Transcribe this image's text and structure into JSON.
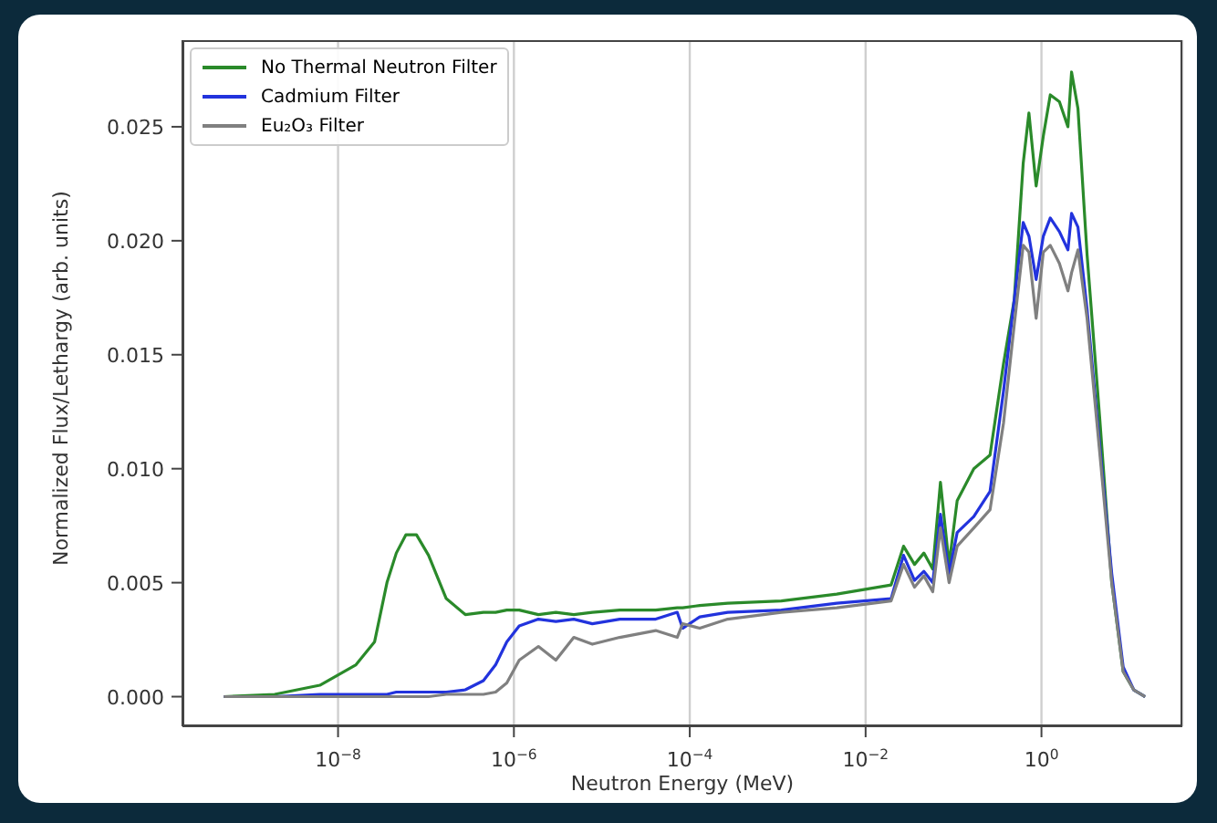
{
  "chart_data": {
    "type": "line",
    "xlabel": "Neutron Energy (MeV)",
    "ylabel": "Normalized Flux/Lethargy (arb. units)",
    "log": "x",
    "grid": "x",
    "legend": "top left",
    "marker": "none",
    "line_style": "solid",
    "xlim": [
      1.7e-10,
      40
    ],
    "ylim": [
      -0.0013,
      0.0288
    ],
    "xticks": [
      {
        "value": 1e-08,
        "label": "10$^{−8}$"
      },
      {
        "value": 1e-06,
        "label": "10$^{−6}$"
      },
      {
        "value": 0.0001,
        "label": "10$^{−4}$"
      },
      {
        "value": 0.01,
        "label": "10$^{−2}$"
      },
      {
        "value": 1,
        "label": "10$^{0}$"
      }
    ],
    "yticks": [
      {
        "value": 0,
        "label": "0.000"
      },
      {
        "value": 0.005,
        "label": "0.005"
      },
      {
        "value": 0.01,
        "label": "0.010"
      },
      {
        "value": 0.015,
        "label": "0.015"
      },
      {
        "value": 0.02,
        "label": "0.020"
      },
      {
        "value": 0.025,
        "label": "0.025"
      }
    ],
    "x": [
      5e-10,
      1.9e-09,
      6.2e-09,
      1.6e-08,
      2.6e-08,
      3.6e-08,
      4.6e-08,
      5.9e-08,
      7.8e-08,
      1.07e-07,
      1.7e-07,
      2.8e-07,
      4.5e-07,
      6.2e-07,
      8.3e-07,
      1.15e-06,
      1.9e-06,
      3e-06,
      4.8e-06,
      7.8e-06,
      1.6e-05,
      4.1e-05,
      7.2e-05,
      8.3e-05,
      0.00013,
      0.00027,
      0.0011,
      0.0047,
      0.0195,
      0.027,
      0.036,
      0.046,
      0.058,
      0.071,
      0.089,
      0.11,
      0.17,
      0.26,
      0.37,
      0.49,
      0.62,
      0.72,
      0.87,
      1.05,
      1.26,
      1.6,
      2.0,
      2.2,
      2.6,
      3.3,
      4.6,
      6.3,
      8.5,
      11.2,
      15.1
    ],
    "series": [
      {
        "name": "No Thermal Neutron Filter",
        "color": "#2a8a2a",
        "values": [
          0,
          0.0001,
          0.0005,
          0.0014,
          0.0024,
          0.005,
          0.0063,
          0.0071,
          0.0071,
          0.0062,
          0.0043,
          0.0036,
          0.0037,
          0.0037,
          0.0038,
          0.0038,
          0.0036,
          0.0037,
          0.0036,
          0.0037,
          0.0038,
          0.0038,
          0.0039,
          0.0039,
          0.004,
          0.0041,
          0.0042,
          0.0045,
          0.0049,
          0.0066,
          0.0058,
          0.0063,
          0.0056,
          0.0094,
          0.0058,
          0.0086,
          0.01,
          0.0106,
          0.0146,
          0.0174,
          0.0234,
          0.0256,
          0.0224,
          0.0246,
          0.0264,
          0.0261,
          0.025,
          0.0274,
          0.0258,
          0.0194,
          0.0122,
          0.005,
          0.0011,
          0.0003,
          0
        ]
      },
      {
        "name": "Cadmium Filter",
        "color": "#2233dd",
        "values": [
          0,
          0,
          0.0001,
          0.0001,
          0.0001,
          0.0001,
          0.0002,
          0.0002,
          0.0002,
          0.0002,
          0.0002,
          0.0003,
          0.0007,
          0.0014,
          0.0024,
          0.0031,
          0.0034,
          0.0033,
          0.0034,
          0.0032,
          0.0034,
          0.0034,
          0.0037,
          0.003,
          0.0035,
          0.0037,
          0.0038,
          0.0041,
          0.0043,
          0.0062,
          0.0051,
          0.0055,
          0.005,
          0.008,
          0.0054,
          0.0072,
          0.0079,
          0.009,
          0.0134,
          0.0174,
          0.0208,
          0.0202,
          0.0183,
          0.0202,
          0.021,
          0.0204,
          0.0196,
          0.0212,
          0.0206,
          0.017,
          0.011,
          0.0054,
          0.0013,
          0.0003,
          0
        ]
      },
      {
        "name": "Eu₂O₃ Filter",
        "color": "#808080",
        "values": [
          0,
          0,
          0,
          0,
          0,
          0,
          0,
          0,
          0,
          0,
          0.0001,
          0.0001,
          0.0001,
          0.0002,
          0.0006,
          0.0016,
          0.0022,
          0.0016,
          0.0026,
          0.0023,
          0.0026,
          0.0029,
          0.0026,
          0.0032,
          0.003,
          0.0034,
          0.0037,
          0.0039,
          0.0042,
          0.0058,
          0.0048,
          0.0053,
          0.0046,
          0.0074,
          0.005,
          0.0066,
          0.0074,
          0.0082,
          0.012,
          0.0163,
          0.0198,
          0.0195,
          0.0166,
          0.0195,
          0.0198,
          0.019,
          0.0178,
          0.0186,
          0.0196,
          0.0166,
          0.0107,
          0.005,
          0.0011,
          0.0003,
          0
        ]
      }
    ]
  }
}
